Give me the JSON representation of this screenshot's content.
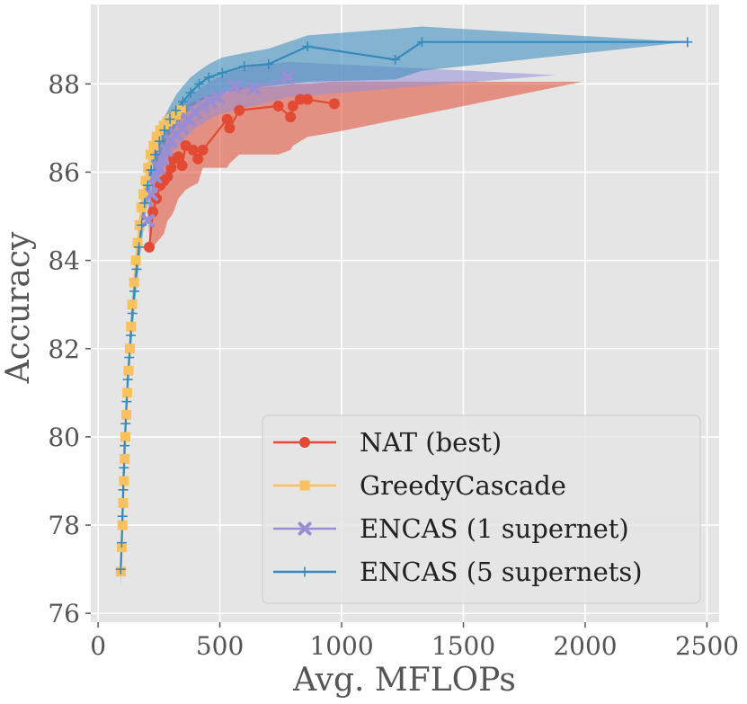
{
  "chart_data": {
    "type": "line",
    "title": "",
    "xlabel": "Avg. MFLOPs",
    "ylabel": "Accuracy",
    "xlim": [
      -30,
      2550
    ],
    "ylim": [
      75.8,
      89.8
    ],
    "xticks": [
      0,
      500,
      1000,
      1500,
      2000,
      2500
    ],
    "yticks": [
      76,
      78,
      80,
      82,
      84,
      86,
      88
    ],
    "grid": true,
    "background": "#e5e5e5",
    "legend_position": "lower-right",
    "series": [
      {
        "name": "NAT (best)",
        "color": "#e24a33",
        "marker": "circle",
        "x": [
          210,
          225,
          240,
          255,
          270,
          285,
          300,
          310,
          330,
          345,
          360,
          390,
          410,
          430,
          530,
          540,
          580,
          740,
          790,
          800,
          830,
          860,
          970
        ],
        "y": [
          84.3,
          85.1,
          85.4,
          85.7,
          85.8,
          85.9,
          86.1,
          86.3,
          86.35,
          86.15,
          86.6,
          86.5,
          86.3,
          86.5,
          87.2,
          87.0,
          87.4,
          87.5,
          87.25,
          87.5,
          87.65,
          87.65,
          87.55
        ],
        "band_upper": [
          85.2,
          85.9,
          86.4,
          86.7,
          86.9,
          87.0,
          87.1,
          87.2,
          87.3,
          87.4,
          87.5,
          87.6,
          87.65,
          87.7,
          87.8,
          87.85,
          87.9,
          87.95,
          88.0,
          88.0,
          88.0,
          88.0,
          88.05,
          88.05
        ],
        "band_upper_x": [
          210,
          225,
          240,
          255,
          270,
          285,
          300,
          310,
          330,
          345,
          360,
          390,
          410,
          430,
          530,
          540,
          580,
          740,
          790,
          800,
          830,
          860,
          970,
          1990
        ],
        "band_lower": [
          84.2,
          84.3,
          84.4,
          84.5,
          84.6,
          84.9,
          85.0,
          85.1,
          85.4,
          85.5,
          85.6,
          85.7,
          85.75,
          86.1,
          86.1,
          86.2,
          86.4,
          86.4,
          86.5,
          86.6,
          86.7,
          86.8,
          86.9,
          88.05
        ],
        "band_lower_x": [
          210,
          225,
          240,
          255,
          270,
          285,
          300,
          310,
          330,
          345,
          360,
          390,
          410,
          430,
          530,
          540,
          580,
          740,
          790,
          800,
          830,
          860,
          970,
          1990
        ]
      },
      {
        "name": "GreedyCascade",
        "color": "#fbc15e",
        "marker": "square",
        "x": [
          93,
          97,
          100,
          103,
          106,
          109,
          112,
          116,
          120,
          125,
          130,
          135,
          140,
          148,
          155,
          162,
          170,
          178,
          186,
          195,
          205,
          215,
          228,
          240,
          255,
          270,
          285,
          300,
          320,
          340
        ],
        "y": [
          76.95,
          77.5,
          78.0,
          78.5,
          79.0,
          79.5,
          80.0,
          80.5,
          81.0,
          81.5,
          82.0,
          82.5,
          83.0,
          83.5,
          84.0,
          84.4,
          84.8,
          85.2,
          85.5,
          85.8,
          86.1,
          86.4,
          86.6,
          86.8,
          86.95,
          87.05,
          87.15,
          87.2,
          87.3,
          87.4
        ],
        "band_upper": [
          77.2,
          77.8,
          78.3,
          78.8,
          79.3,
          79.8,
          80.3,
          80.8,
          81.3,
          81.8,
          82.3,
          82.8,
          83.3,
          83.8,
          84.3,
          84.7,
          85.1,
          85.5,
          85.8,
          86.1,
          86.4,
          86.65,
          86.85,
          87.0,
          87.15,
          87.25,
          87.35,
          87.4,
          87.5,
          87.6
        ],
        "band_lower": [
          76.7,
          77.2,
          77.7,
          78.2,
          78.7,
          79.2,
          79.7,
          80.2,
          80.7,
          81.2,
          81.7,
          82.2,
          82.7,
          83.2,
          83.7,
          84.1,
          84.5,
          84.9,
          85.2,
          85.5,
          85.8,
          86.1,
          86.35,
          86.55,
          86.7,
          86.8,
          86.9,
          87.0,
          87.1,
          87.2
        ]
      },
      {
        "name": "ENCAS (1 supernet)",
        "color": "#988ed5",
        "marker": "x",
        "x": [
          205,
          220,
          235,
          250,
          265,
          280,
          300,
          320,
          345,
          370,
          400,
          430,
          460,
          490,
          560,
          640,
          780
        ],
        "y": [
          84.9,
          85.5,
          85.9,
          86.1,
          86.3,
          86.5,
          86.7,
          86.85,
          87.0,
          87.2,
          87.35,
          87.5,
          87.6,
          87.7,
          87.95,
          87.9,
          88.15
        ],
        "band_upper": [
          85.4,
          86.0,
          86.3,
          86.6,
          86.8,
          87.0,
          87.2,
          87.35,
          87.5,
          87.7,
          87.8,
          87.95,
          88.05,
          88.15,
          88.3,
          88.4,
          88.5,
          88.2
        ],
        "band_upper_x": [
          205,
          220,
          235,
          250,
          265,
          280,
          300,
          320,
          345,
          370,
          400,
          430,
          460,
          490,
          560,
          640,
          780,
          1880
        ],
        "band_lower": [
          84.6,
          85.1,
          85.5,
          85.8,
          86.0,
          86.2,
          86.4,
          86.55,
          86.7,
          86.85,
          87.0,
          87.1,
          87.2,
          87.3,
          87.4,
          87.5,
          87.7,
          88.2
        ],
        "band_lower_x": [
          205,
          220,
          235,
          250,
          265,
          280,
          300,
          320,
          345,
          370,
          400,
          430,
          460,
          490,
          560,
          640,
          780,
          1880
        ]
      },
      {
        "name": "ENCAS (5 supernets)",
        "color": "#348abd",
        "marker": "plus",
        "x": [
          93,
          97,
          100,
          103,
          106,
          109,
          113,
          117,
          122,
          128,
          134,
          141,
          149,
          158,
          168,
          179,
          191,
          204,
          218,
          234,
          252,
          272,
          295,
          320,
          348,
          380,
          415,
          455,
          510,
          600,
          700,
          860,
          1220,
          1330,
          2420
        ],
        "y": [
          77.0,
          77.6,
          78.2,
          78.8,
          79.3,
          79.8,
          80.3,
          80.8,
          81.3,
          81.8,
          82.3,
          82.8,
          83.3,
          83.8,
          84.3,
          84.8,
          85.3,
          85.7,
          86.05,
          86.4,
          86.7,
          86.95,
          87.2,
          87.4,
          87.6,
          87.8,
          88.0,
          88.15,
          88.25,
          88.4,
          88.45,
          88.85,
          88.55,
          88.95,
          88.95
        ],
        "band_upper": [
          77.2,
          77.8,
          78.4,
          79.0,
          79.5,
          80.0,
          80.5,
          81.0,
          81.5,
          82.0,
          82.5,
          83.0,
          83.5,
          84.0,
          84.5,
          85.0,
          85.5,
          85.9,
          86.3,
          86.65,
          86.95,
          87.25,
          87.5,
          87.75,
          87.95,
          88.15,
          88.3,
          88.45,
          88.6,
          88.7,
          88.8,
          89.1,
          89.25,
          89.3,
          88.95
        ],
        "band_lower": [
          76.6,
          77.2,
          77.8,
          78.4,
          78.9,
          79.4,
          79.9,
          80.4,
          80.9,
          81.4,
          81.9,
          82.4,
          82.9,
          83.4,
          83.9,
          84.4,
          84.9,
          85.3,
          85.7,
          86.05,
          86.35,
          86.6,
          86.85,
          87.05,
          87.25,
          87.45,
          87.6,
          87.7,
          87.8,
          87.9,
          87.95,
          88.05,
          88.1,
          88.3,
          88.95
        ]
      }
    ]
  }
}
